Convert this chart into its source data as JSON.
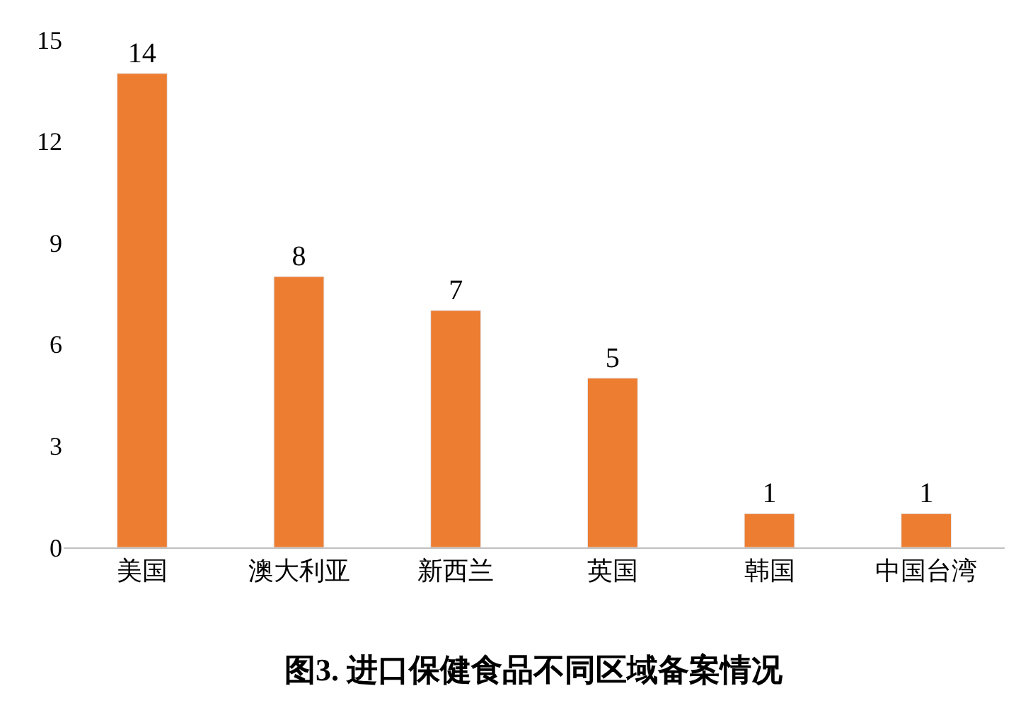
{
  "chart_data": {
    "type": "bar",
    "title": "图3. 进口保健食品不同区域备案情况",
    "categories": [
      "美国",
      "澳大利亚",
      "新西兰",
      "英国",
      "韩国",
      "中国台湾"
    ],
    "values": [
      14,
      8,
      7,
      5,
      1,
      1
    ],
    "color": "#ed7d31",
    "ylim": [
      0,
      15
    ],
    "yticks": [
      0,
      3,
      6,
      9,
      12,
      15
    ],
    "data_labels": true,
    "legend": false
  }
}
